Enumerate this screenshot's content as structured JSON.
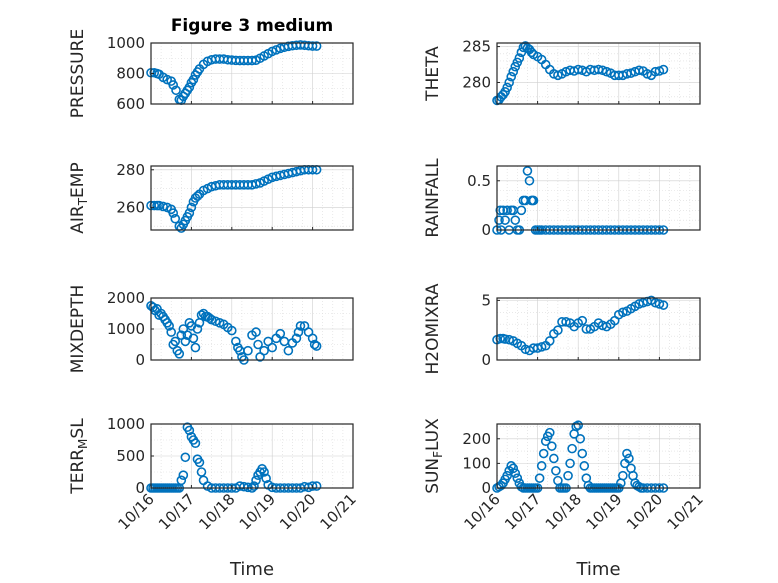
{
  "figure_title": "Figure 3 medium",
  "chart_data": [
    {
      "type": "scatter",
      "id": "pressure",
      "title": "Figure 3 medium",
      "ylabel": "PRESSURE",
      "ylim": [
        600,
        1000
      ],
      "yticks": [
        600,
        800,
        1000
      ],
      "yticklabels": [
        "600",
        "800",
        "1000"
      ],
      "yminor": [
        700,
        900
      ],
      "xlim": [
        0,
        5
      ],
      "xlabel": "",
      "xticklabels": [],
      "x": [
        0,
        0.08,
        0.15,
        0.2,
        0.3,
        0.4,
        0.5,
        0.55,
        0.62,
        0.7,
        0.75,
        0.8,
        0.85,
        0.9,
        0.95,
        1.0,
        1.05,
        1.1,
        1.15,
        1.2,
        1.3,
        1.4,
        1.5,
        1.6,
        1.7,
        1.8,
        1.9,
        2.0,
        2.1,
        2.2,
        2.3,
        2.4,
        2.5,
        2.6,
        2.7,
        2.8,
        2.9,
        3.0,
        3.1,
        3.2,
        3.3,
        3.4,
        3.5,
        3.6,
        3.7,
        3.8,
        3.9,
        4.0,
        4.1
      ],
      "y": [
        805,
        805,
        800,
        795,
        775,
        760,
        750,
        725,
        690,
        630,
        625,
        650,
        670,
        690,
        710,
        740,
        760,
        790,
        810,
        830,
        860,
        880,
        890,
        895,
        895,
        895,
        890,
        888,
        886,
        885,
        885,
        885,
        885,
        887,
        900,
        915,
        930,
        945,
        955,
        965,
        972,
        978,
        982,
        985,
        987,
        985,
        982,
        980,
        980
      ]
    },
    {
      "type": "scatter",
      "id": "theta",
      "ylabel": "THETA",
      "ylim": [
        277,
        285.5
      ],
      "yticks": [
        280,
        285
      ],
      "yticklabels": [
        "280",
        "285"
      ],
      "yminor": [
        278,
        282,
        283,
        284
      ],
      "xlim": [
        0,
        5
      ],
      "xlabel": "",
      "xticklabels": [],
      "x": [
        0,
        0.05,
        0.1,
        0.15,
        0.2,
        0.25,
        0.3,
        0.35,
        0.4,
        0.45,
        0.5,
        0.55,
        0.6,
        0.65,
        0.7,
        0.75,
        0.8,
        0.85,
        0.9,
        1.0,
        1.1,
        1.2,
        1.3,
        1.4,
        1.5,
        1.6,
        1.7,
        1.8,
        1.9,
        2.0,
        2.1,
        2.2,
        2.3,
        2.4,
        2.5,
        2.6,
        2.7,
        2.8,
        2.9,
        3.0,
        3.1,
        3.2,
        3.3,
        3.4,
        3.5,
        3.6,
        3.7,
        3.8,
        3.9,
        4.0,
        4.1
      ],
      "y": [
        277.5,
        277.6,
        278,
        278.3,
        278.7,
        279.3,
        280,
        280.8,
        281.5,
        282.2,
        282.8,
        283.4,
        284.2,
        284.9,
        285.1,
        284.8,
        284.6,
        284.2,
        283.9,
        283.6,
        283.2,
        282.5,
        281.8,
        281.2,
        281,
        281.2,
        281.5,
        281.7,
        281.6,
        281.8,
        281.7,
        281.5,
        281.8,
        281.7,
        281.8,
        281.7,
        281.5,
        281.3,
        281,
        281,
        281,
        281.2,
        281.3,
        281.5,
        281.7,
        281.6,
        281.2,
        281,
        281.5,
        281.6,
        281.8
      ]
    },
    {
      "type": "scatter",
      "id": "air_temp",
      "ylabel": "AIR_TEMP",
      "ylim": [
        248,
        282
      ],
      "yticks": [
        260,
        280
      ],
      "yticklabels": [
        "260",
        "280"
      ],
      "yminor": [
        250,
        270
      ],
      "xlim": [
        0,
        5
      ],
      "xlabel": "",
      "xticklabels": [],
      "x": [
        0,
        0.08,
        0.15,
        0.2,
        0.3,
        0.4,
        0.5,
        0.55,
        0.6,
        0.7,
        0.75,
        0.8,
        0.85,
        0.9,
        0.95,
        1.0,
        1.05,
        1.1,
        1.15,
        1.2,
        1.3,
        1.4,
        1.5,
        1.6,
        1.7,
        1.8,
        1.9,
        2.0,
        2.1,
        2.2,
        2.3,
        2.4,
        2.5,
        2.6,
        2.7,
        2.8,
        2.9,
        3.0,
        3.1,
        3.2,
        3.3,
        3.4,
        3.5,
        3.6,
        3.7,
        3.8,
        3.9,
        4.0,
        4.1
      ],
      "y": [
        261,
        261,
        261,
        261,
        260.5,
        260,
        259,
        257,
        254,
        250,
        249,
        251,
        253,
        255,
        257,
        260,
        263,
        265,
        266,
        267,
        269,
        270,
        271,
        271.5,
        272,
        272,
        272,
        272,
        272,
        272,
        272,
        272,
        272,
        272.5,
        273,
        274,
        275,
        276,
        276.5,
        277,
        277.5,
        278,
        278.5,
        279,
        279.5,
        280,
        280,
        280,
        280
      ]
    },
    {
      "type": "scatter",
      "id": "rainfall",
      "ylabel": "RAINFALL",
      "ylim": [
        0,
        0.65
      ],
      "yticks": [
        0,
        0.5
      ],
      "yticklabels": [
        "0",
        "0.5"
      ],
      "yminor": [
        0.1,
        0.2,
        0.3,
        0.4
      ],
      "xlim": [
        0,
        5
      ],
      "xlabel": "",
      "xticklabels": [],
      "x": [
        0,
        0.05,
        0.08,
        0.1,
        0.15,
        0.2,
        0.25,
        0.3,
        0.35,
        0.4,
        0.45,
        0.5,
        0.55,
        0.6,
        0.65,
        0.7,
        0.75,
        0.8,
        0.85,
        0.88,
        0.9,
        0.95,
        1.0,
        1.05,
        1.1,
        1.2,
        1.3,
        1.4,
        1.5,
        1.6,
        1.7,
        1.8,
        1.9,
        2.0,
        2.1,
        2.2,
        2.3,
        2.4,
        2.5,
        2.6,
        2.7,
        2.8,
        2.9,
        3.0,
        3.1,
        3.2,
        3.3,
        3.4,
        3.5,
        3.6,
        3.7,
        3.8,
        3.9,
        4.0,
        4.1
      ],
      "y": [
        0,
        0.1,
        0.2,
        0,
        0.2,
        0.1,
        0.2,
        0,
        0.2,
        0.2,
        0.1,
        0,
        0,
        0.2,
        0.3,
        0.3,
        0.6,
        0.5,
        0.3,
        0.3,
        0.3,
        0,
        0,
        0,
        0,
        0,
        0,
        0,
        0,
        0,
        0,
        0,
        0,
        0,
        0,
        0,
        0,
        0,
        0,
        0,
        0,
        0,
        0,
        0,
        0,
        0,
        0,
        0,
        0,
        0,
        0,
        0,
        0,
        0,
        0
      ]
    },
    {
      "type": "scatter",
      "id": "mixdepth",
      "ylabel": "MIXDEPTH",
      "ylim": [
        0,
        2000
      ],
      "yticks": [
        0,
        1000,
        2000
      ],
      "yticklabels": [
        "0",
        "1000",
        "2000"
      ],
      "yminor": [
        500,
        1500
      ],
      "xlim": [
        0,
        5
      ],
      "xlabel": "",
      "xticklabels": [],
      "x": [
        0,
        0.05,
        0.1,
        0.15,
        0.2,
        0.25,
        0.3,
        0.35,
        0.4,
        0.45,
        0.5,
        0.55,
        0.6,
        0.65,
        0.7,
        0.75,
        0.8,
        0.85,
        0.9,
        0.95,
        1.0,
        1.05,
        1.1,
        1.15,
        1.2,
        1.25,
        1.3,
        1.35,
        1.4,
        1.45,
        1.5,
        1.6,
        1.7,
        1.8,
        1.9,
        2.0,
        2.1,
        2.15,
        2.2,
        2.25,
        2.3,
        2.4,
        2.5,
        2.6,
        2.65,
        2.7,
        2.8,
        2.9,
        3.0,
        3.1,
        3.2,
        3.3,
        3.4,
        3.5,
        3.6,
        3.65,
        3.7,
        3.8,
        3.9,
        4.0,
        4.05,
        4.1
      ],
      "y": [
        1750,
        1700,
        1600,
        1650,
        1450,
        1500,
        1400,
        1300,
        1200,
        1100,
        900,
        500,
        600,
        300,
        200,
        800,
        1000,
        600,
        800,
        1200,
        1100,
        700,
        400,
        1000,
        1200,
        1450,
        1500,
        1400,
        1400,
        1350,
        1300,
        1250,
        1200,
        1150,
        1050,
        950,
        600,
        400,
        300,
        100,
        0,
        300,
        800,
        900,
        500,
        100,
        300,
        600,
        400,
        700,
        850,
        600,
        300,
        550,
        700,
        900,
        1100,
        1100,
        900,
        700,
        500,
        450
      ]
    },
    {
      "type": "scatter",
      "id": "h2omixra",
      "ylabel": "H2OMIXRA",
      "ylim": [
        0,
        5.2
      ],
      "yticks": [
        0,
        5
      ],
      "yticklabels": [
        "0",
        "5"
      ],
      "yminor": [
        1,
        2,
        3,
        4
      ],
      "xlim": [
        0,
        5
      ],
      "xlabel": "",
      "xticklabels": [],
      "x": [
        0,
        0.08,
        0.15,
        0.2,
        0.3,
        0.4,
        0.5,
        0.6,
        0.7,
        0.8,
        0.9,
        1.0,
        1.1,
        1.2,
        1.3,
        1.4,
        1.5,
        1.6,
        1.7,
        1.8,
        1.9,
        2.0,
        2.1,
        2.2,
        2.3,
        2.4,
        2.5,
        2.6,
        2.7,
        2.8,
        2.9,
        3.0,
        3.1,
        3.2,
        3.3,
        3.4,
        3.5,
        3.6,
        3.7,
        3.8,
        3.9,
        4.0,
        4.1
      ],
      "y": [
        1.7,
        1.8,
        1.8,
        1.75,
        1.7,
        1.6,
        1.4,
        1.2,
        0.9,
        0.8,
        1.0,
        1.0,
        1.1,
        1.2,
        1.6,
        2.2,
        2.5,
        3.2,
        3.2,
        3.1,
        2.8,
        3.1,
        3.3,
        2.6,
        2.6,
        2.8,
        3.1,
        2.9,
        2.8,
        3.0,
        3.3,
        3.8,
        4.0,
        4.1,
        4.3,
        4.5,
        4.7,
        4.8,
        4.9,
        5.0,
        4.8,
        4.7,
        4.6
      ]
    },
    {
      "type": "scatter",
      "id": "terr_msl",
      "ylabel": "TERR_MSL",
      "ylim": [
        0,
        1000
      ],
      "yticks": [
        0,
        500,
        1000
      ],
      "yticklabels": [
        "0",
        "500",
        "1000"
      ],
      "yminor": [
        250,
        750
      ],
      "xlim": [
        0,
        5
      ],
      "xlabel": "Time",
      "xticks": [
        0,
        1,
        2,
        3,
        4,
        5
      ],
      "xticklabels": [
        "10/16",
        "10/17",
        "10/18",
        "10/19",
        "10/20",
        "10/21"
      ],
      "x": [
        0,
        0.05,
        0.1,
        0.15,
        0.2,
        0.25,
        0.3,
        0.35,
        0.4,
        0.45,
        0.5,
        0.55,
        0.6,
        0.65,
        0.7,
        0.75,
        0.8,
        0.85,
        0.9,
        0.95,
        1.0,
        1.05,
        1.1,
        1.15,
        1.2,
        1.25,
        1.3,
        1.4,
        1.5,
        1.6,
        1.7,
        1.8,
        1.9,
        2.0,
        2.1,
        2.2,
        2.3,
        2.4,
        2.5,
        2.55,
        2.6,
        2.65,
        2.7,
        2.75,
        2.8,
        2.85,
        2.9,
        3.0,
        3.1,
        3.2,
        3.3,
        3.4,
        3.5,
        3.6,
        3.7,
        3.8,
        3.9,
        4.0,
        4.1
      ],
      "y": [
        0,
        0,
        0,
        0,
        0,
        0,
        0,
        0,
        0,
        0,
        0,
        0,
        0,
        0,
        0,
        120,
        200,
        480,
        950,
        900,
        800,
        750,
        700,
        450,
        400,
        250,
        120,
        30,
        0,
        0,
        0,
        0,
        0,
        0,
        0,
        30,
        20,
        10,
        0,
        30,
        120,
        200,
        250,
        300,
        250,
        150,
        50,
        10,
        0,
        0,
        0,
        0,
        0,
        0,
        0,
        20,
        10,
        30,
        30
      ]
    },
    {
      "type": "scatter",
      "id": "sun_flux",
      "ylabel": "SUN_FLUX",
      "ylim": [
        0,
        260
      ],
      "yticks": [
        0,
        100,
        200
      ],
      "yticklabels": [
        "0",
        "100",
        "200"
      ],
      "yminor": [
        50,
        150,
        250
      ],
      "xlim": [
        0,
        5
      ],
      "xlabel": "Time",
      "xticks": [
        0,
        1,
        2,
        3,
        4,
        5
      ],
      "xticklabels": [
        "10/16",
        "10/17",
        "10/18",
        "10/19",
        "10/20",
        "10/21"
      ],
      "x": [
        0,
        0.05,
        0.1,
        0.15,
        0.2,
        0.25,
        0.3,
        0.35,
        0.4,
        0.45,
        0.5,
        0.55,
        0.6,
        0.65,
        0.7,
        0.75,
        0.8,
        0.85,
        0.9,
        0.95,
        1.0,
        1.05,
        1.1,
        1.15,
        1.2,
        1.25,
        1.3,
        1.35,
        1.4,
        1.45,
        1.5,
        1.55,
        1.6,
        1.65,
        1.7,
        1.75,
        1.8,
        1.85,
        1.9,
        1.95,
        2.0,
        2.05,
        2.1,
        2.15,
        2.2,
        2.25,
        2.3,
        2.35,
        2.4,
        2.45,
        2.5,
        2.55,
        2.6,
        2.65,
        2.7,
        2.75,
        2.8,
        2.85,
        2.9,
        2.95,
        3.0,
        3.05,
        3.1,
        3.15,
        3.2,
        3.25,
        3.3,
        3.35,
        3.4,
        3.45,
        3.5,
        3.55,
        3.6,
        3.7,
        3.8,
        3.9,
        4.0,
        4.1
      ],
      "y": [
        0,
        5,
        10,
        20,
        35,
        50,
        70,
        90,
        80,
        60,
        40,
        20,
        5,
        0,
        0,
        0,
        0,
        0,
        0,
        0,
        0,
        40,
        90,
        140,
        190,
        210,
        225,
        170,
        120,
        70,
        30,
        0,
        0,
        0,
        0,
        50,
        100,
        160,
        220,
        250,
        255,
        200,
        140,
        90,
        40,
        10,
        0,
        0,
        0,
        0,
        0,
        0,
        0,
        0,
        0,
        0,
        0,
        0,
        0,
        0,
        0,
        20,
        50,
        100,
        140,
        120,
        80,
        50,
        20,
        10,
        5,
        0,
        0,
        0,
        0,
        0,
        0,
        0
      ]
    }
  ]
}
